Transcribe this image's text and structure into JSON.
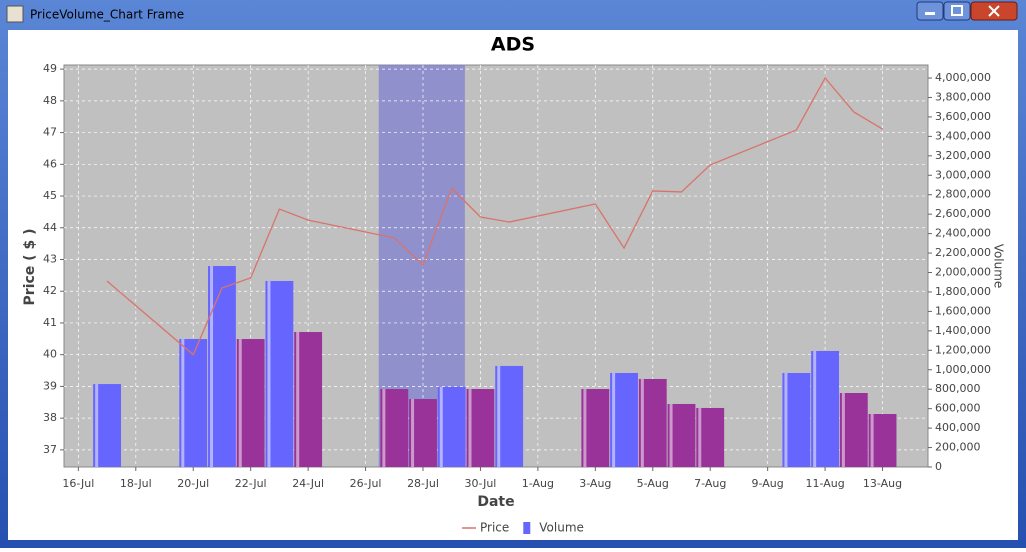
{
  "window": {
    "title": "PriceVolume_Chart Frame"
  },
  "chart_data": {
    "type": "price-volume",
    "title": "ADS",
    "x_label": "Date",
    "y_label": "Price ( $ )",
    "y2_label": "Volume",
    "x": [
      "17-Jul",
      "20-Jul",
      "21-Jul",
      "22-Jul",
      "23-Jul",
      "24-Jul",
      "27-Jul",
      "28-Jul",
      "29-Jul",
      "30-Jul",
      "31-Jul",
      "3-Aug",
      "4-Aug",
      "5-Aug",
      "6-Aug",
      "7-Aug",
      "10-Aug",
      "11-Aug",
      "12-Aug",
      "13-Aug"
    ],
    "series": [
      {
        "name": "Price",
        "kind": "line",
        "color": "#d9736a",
        "values": [
          42.32,
          40.0,
          42.1,
          42.42,
          44.59,
          44.24,
          43.68,
          42.83,
          45.25,
          44.34,
          44.18,
          44.75,
          43.36,
          45.16,
          45.13,
          45.98,
          47.08,
          48.72,
          47.65,
          47.11
        ]
      },
      {
        "name": "Volume",
        "kind": "bar",
        "axis": "y2",
        "color": "#6666ff",
        "colors": [
          "#6666ff",
          "#6666ff",
          "#6666ff",
          "#993399",
          "#6666ff",
          "#993399",
          "#993399",
          "#993399",
          "#6666ff",
          "#993399",
          "#6666ff",
          "#993399",
          "#6666ff",
          "#993399",
          "#993399",
          "#993399",
          "#6666ff",
          "#6666ff",
          "#993399",
          "#993399"
        ],
        "values": [
          853000,
          1316000,
          2067000,
          1316000,
          1913000,
          1388000,
          802000,
          699000,
          823000,
          802000,
          1039000,
          802000,
          967000,
          905000,
          648000,
          607000,
          967000,
          1193000,
          761000,
          545000
        ]
      }
    ],
    "xlim": [
      "15-Jul 12:00",
      "14-Aug 14:00"
    ],
    "xticks": [
      "16-Jul",
      "18-Jul",
      "20-Jul",
      "22-Jul",
      "24-Jul",
      "26-Jul",
      "28-Jul",
      "30-Jul",
      "1-Aug",
      "3-Aug",
      "5-Aug",
      "7-Aug",
      "9-Aug",
      "11-Aug",
      "13-Aug"
    ],
    "ylim": [
      36.46,
      49.13
    ],
    "yticks": [
      37,
      38,
      39,
      40,
      41,
      42,
      43,
      44,
      45,
      46,
      47,
      48,
      49
    ],
    "y2lim": [
      0,
      4134000
    ],
    "y2ticks": [
      0,
      {
        "value": 200000,
        "label": "200,000"
      },
      {
        "value": 400000,
        "label": "400,000"
      },
      {
        "value": 600000,
        "label": "600,000"
      },
      {
        "value": 800000,
        "label": "800,000"
      },
      {
        "value": 1000000,
        "label": "1,000,000"
      },
      {
        "value": 1200000,
        "label": "1,200,000"
      },
      {
        "value": 1400000,
        "label": "1,400,000"
      },
      {
        "value": 1600000,
        "label": "1,600,000"
      },
      {
        "value": 1800000,
        "label": "1,800,000"
      },
      {
        "value": 2000000,
        "label": "2,000,000"
      },
      {
        "value": 2200000,
        "label": "2,200,000"
      },
      {
        "value": 2400000,
        "label": "2,400,000"
      },
      {
        "value": 2600000,
        "label": "2,600,000"
      },
      {
        "value": 2800000,
        "label": "2,800,000"
      },
      {
        "value": 3000000,
        "label": "3,000,000"
      },
      {
        "value": 3200000,
        "label": "3,200,000"
      },
      {
        "value": 3400000,
        "label": "3,400,000"
      },
      {
        "value": 3600000,
        "label": "3,600,000"
      },
      {
        "value": 3800000,
        "label": "3,800,000"
      },
      {
        "value": 4000000,
        "label": "4,000,000"
      }
    ],
    "highlight": {
      "range": [
        "26-Jul 11:00",
        "29-Jul 11:00"
      ],
      "color": "#8080d0"
    },
    "grid": true,
    "legend": "bottom",
    "plot_background": "#c0c0c0"
  }
}
